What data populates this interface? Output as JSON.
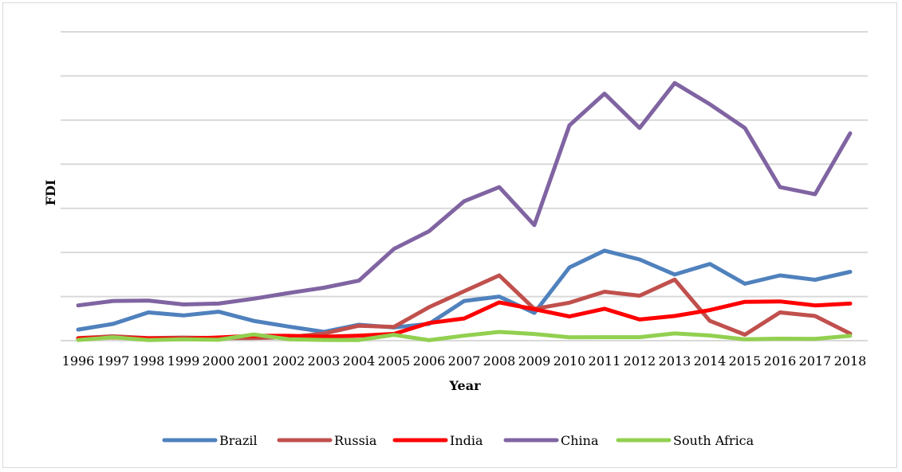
{
  "chart_data": {
    "type": "line",
    "title": "",
    "xlabel": "Year",
    "ylabel": "FDI",
    "y_tick_labels_visible": false,
    "grid": "horizontal",
    "legend_position": "bottom",
    "ylim": [
      0,
      350
    ],
    "y_gridlines": [
      0,
      50,
      100,
      150,
      200,
      250,
      300,
      350
    ],
    "categories": [
      "1996",
      "1997",
      "1998",
      "1999",
      "2000",
      "2001",
      "2002",
      "2003",
      "2004",
      "2005",
      "2006",
      "2007",
      "2008",
      "2009",
      "2010",
      "2011",
      "2012",
      "2013",
      "2014",
      "2015",
      "2016",
      "2017",
      "2018"
    ],
    "series": [
      {
        "name": "Brazil",
        "color": "#4f81bd",
        "values": [
          12.5,
          19,
          32,
          28.6,
          32.8,
          22.5,
          16,
          10,
          18,
          15,
          19,
          45,
          50,
          31.5,
          83,
          102,
          92,
          75,
          87,
          64.5,
          74,
          69,
          78
        ]
      },
      {
        "name": "Russia",
        "color": "#c0504d",
        "values": [
          3,
          5,
          3,
          3.5,
          3,
          3,
          4,
          8,
          17,
          15.6,
          38,
          56,
          74,
          36,
          43,
          55.5,
          51,
          69.2,
          22.5,
          6.8,
          32,
          28,
          8
        ]
      },
      {
        "name": "India",
        "color": "#ff0000",
        "values": [
          2.5,
          3.6,
          2.6,
          2.2,
          3.6,
          5.5,
          5.5,
          4.5,
          5.7,
          7.7,
          20,
          25.2,
          43.4,
          35.6,
          27.4,
          36.2,
          24,
          28,
          34.6,
          44,
          44.5,
          40,
          42
        ]
      },
      {
        "name": "China",
        "color": "#8064a2",
        "values": [
          40,
          45,
          45.5,
          41,
          42,
          47.5,
          54,
          60,
          68,
          104,
          124,
          158,
          174,
          131,
          244,
          280,
          241,
          292,
          268,
          241,
          174,
          166,
          235
        ]
      },
      {
        "name": "South Africa",
        "color": "#92d050",
        "values": [
          0.8,
          3.8,
          0.6,
          1.5,
          1,
          7,
          1.6,
          0.8,
          0.7,
          6.6,
          0.5,
          5.7,
          9.9,
          7.6,
          3.8,
          4,
          4,
          8.2,
          5.9,
          1.5,
          2.3,
          2,
          5.5
        ]
      }
    ]
  }
}
